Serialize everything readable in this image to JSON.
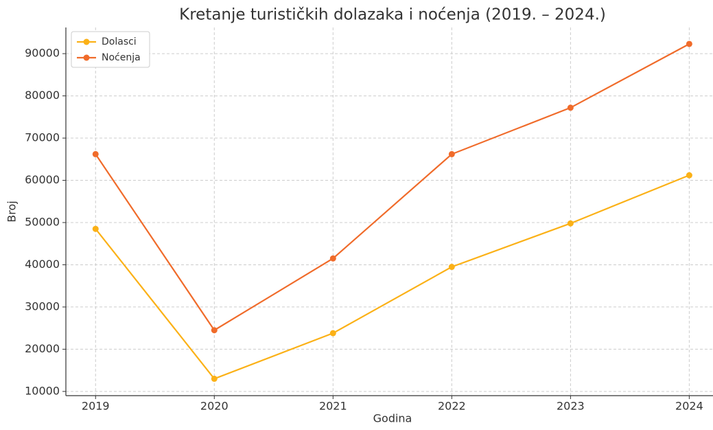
{
  "chart_data": {
    "type": "line",
    "title": "Kretanje turističkih dolazaka i noćenja (2019. – 2024.)",
    "x_label": "Godina",
    "y_label": "Broj",
    "x": [
      2019,
      2020,
      2021,
      2022,
      2023,
      2024
    ],
    "series": [
      {
        "name": "Dolasci",
        "color": "#fbb117",
        "values": [
          48500,
          13000,
          23800,
          39500,
          49800,
          61200
        ]
      },
      {
        "name": "Noćenja",
        "color": "#f06b2a",
        "values": [
          66200,
          24500,
          41500,
          66200,
          77200,
          92300
        ]
      }
    ],
    "xlim": [
      2018.75,
      2024.2
    ],
    "xticks": [
      2019,
      2020,
      2021,
      2022,
      2023,
      2024
    ],
    "ylim": [
      9000,
      96200
    ],
    "yticks": [
      10000,
      20000,
      30000,
      40000,
      50000,
      60000,
      70000,
      80000,
      90000
    ],
    "grid": true,
    "legend": "upper left"
  }
}
